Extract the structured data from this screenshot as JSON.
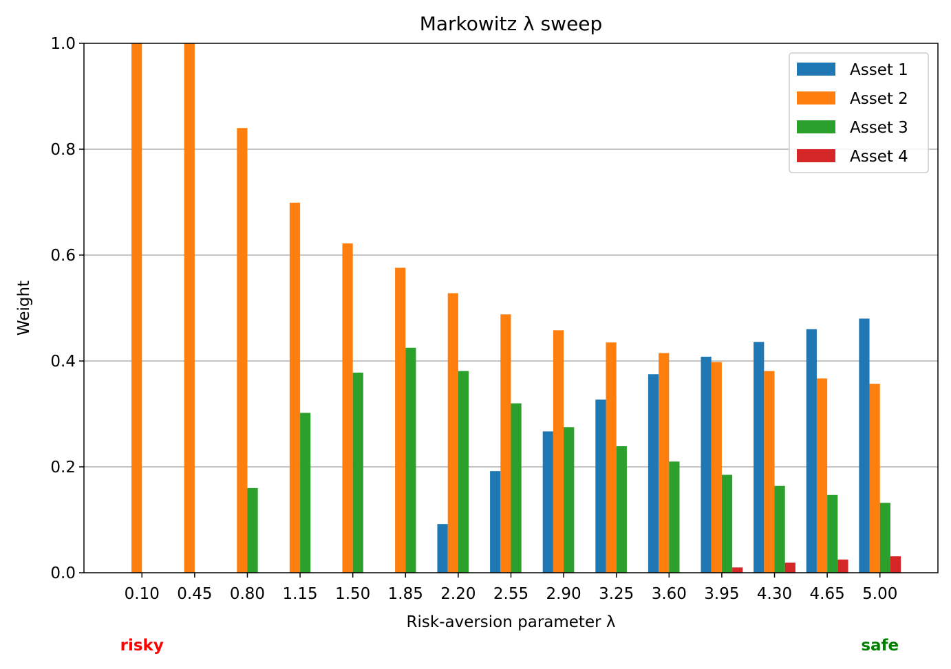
{
  "chart_data": {
    "type": "bar",
    "title": "Markowitz λ sweep",
    "xlabel": "Risk-aversion parameter λ",
    "ylabel": "Weight",
    "ylim": [
      0,
      1.0
    ],
    "yticks": [
      "0.0",
      "0.2",
      "0.4",
      "0.6",
      "0.8",
      "1.0"
    ],
    "grid": "y",
    "legend": "top-right",
    "categories": [
      "0.10",
      "0.45",
      "0.80",
      "1.15",
      "1.50",
      "1.85",
      "2.20",
      "2.55",
      "2.90",
      "3.25",
      "3.60",
      "3.95",
      "4.30",
      "4.65",
      "5.00"
    ],
    "series": [
      {
        "name": "Asset 1",
        "color": "#1f77b4",
        "values": [
          0,
          0,
          0,
          0,
          0,
          0,
          0.092,
          0.192,
          0.267,
          0.327,
          0.375,
          0.408,
          0.436,
          0.46,
          0.48
        ]
      },
      {
        "name": "Asset 2",
        "color": "#ff7f0e",
        "values": [
          1.0,
          1.0,
          0.84,
          0.699,
          0.622,
          0.576,
          0.528,
          0.488,
          0.458,
          0.435,
          0.415,
          0.398,
          0.381,
          0.367,
          0.357
        ]
      },
      {
        "name": "Asset 3",
        "color": "#2ca02c",
        "values": [
          0,
          0,
          0.16,
          0.302,
          0.378,
          0.425,
          0.381,
          0.32,
          0.275,
          0.239,
          0.21,
          0.185,
          0.164,
          0.147,
          0.132
        ]
      },
      {
        "name": "Asset 4",
        "color": "#d62728",
        "values": [
          0,
          0,
          0,
          0,
          0,
          0,
          0,
          0,
          0,
          0,
          0,
          0.01,
          0.019,
          0.025,
          0.031
        ]
      }
    ],
    "annotations": [
      {
        "text": "risky",
        "color": "#ff0000",
        "at": "0.10"
      },
      {
        "text": "safe",
        "color": "#008000",
        "at": "5.00"
      }
    ]
  }
}
